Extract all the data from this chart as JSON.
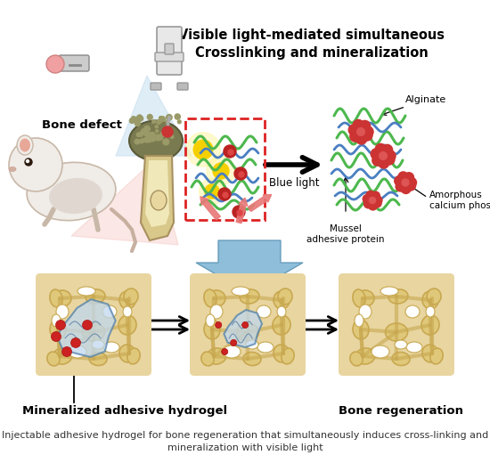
{
  "title": "Visible light-mediated simultaneous\nCrosslinking and mineralization",
  "caption_line1": "Injectable adhesive hydrogel for bone regeneration that simultaneously induces cross-linking and",
  "caption_line2": "mineralization with visible light",
  "label_bone_defect": "Bone defect",
  "label_blue_light": "Blue light",
  "label_mussel": "Mussel\nadhesive protein",
  "label_calcium": "Amorphous\ncalcium phosphate",
  "label_alginate": "Alginate",
  "label_hydrogel": "Mineralized adhesive hydrogel",
  "label_regen": "Bone regeneration",
  "bg_color": "#ffffff",
  "title_fontsize": 10.5,
  "caption_fontsize": 8,
  "label_fontsize": 9,
  "bold_label_fontsize": 10,
  "alginate_color": "#4db84d",
  "mussel_color": "#4a7fc1",
  "calcium_color": "#c0392b",
  "bone_color": "#e8d5a3",
  "bone_dark": "#c9b07a",
  "hydrogel_color": "#b8d4e8",
  "arrow_color": "#111111",
  "blue_arrow_color": "#7ab3d4"
}
